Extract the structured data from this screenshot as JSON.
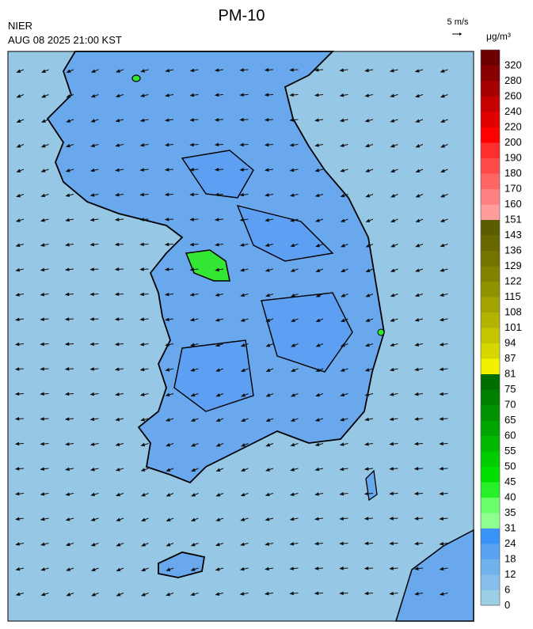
{
  "header": {
    "title": "PM-10",
    "source": "NIER",
    "timestamp": "AUG 08 2025 21:00 KST",
    "wind_scale": "5 m/s",
    "unit": "μg/m³"
  },
  "colorbar": {
    "levels": [
      0,
      6,
      12,
      18,
      24,
      31,
      35,
      40,
      45,
      50,
      55,
      60,
      65,
      70,
      75,
      81,
      87,
      94,
      101,
      108,
      115,
      122,
      129,
      136,
      143,
      151,
      160,
      170,
      180,
      190,
      200,
      220,
      240,
      260,
      280,
      320
    ],
    "colors": [
      "#9ccfe6",
      "#86c0ea",
      "#70b2ee",
      "#5aa3f2",
      "#3a93f6",
      "#8fff8f",
      "#6cff6c",
      "#28f028",
      "#00e000",
      "#00cc00",
      "#00b800",
      "#00a400",
      "#009000",
      "#007f00",
      "#006d00",
      "#f2f200",
      "#d6d600",
      "#c4c400",
      "#b2b200",
      "#a2a200",
      "#929200",
      "#828200",
      "#737300",
      "#676700",
      "#5c5c00",
      "#ff9c9c",
      "#ff8080",
      "#ff6666",
      "#ff4a4a",
      "#ff2e2e",
      "#ff0000",
      "#e00000",
      "#c40000",
      "#a60000",
      "#880000",
      "#6c0000"
    ]
  }
}
